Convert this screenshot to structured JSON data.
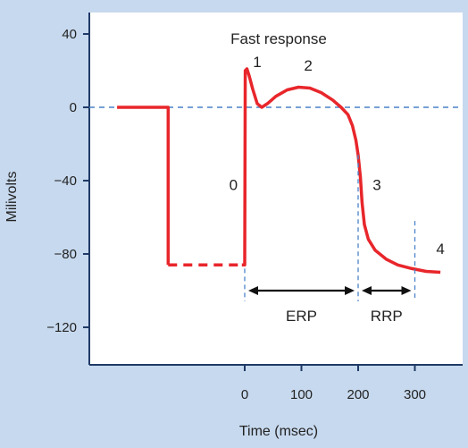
{
  "chart_data": {
    "type": "line",
    "title": "Fast response",
    "xlabel": "Time (msec)",
    "ylabel": "Milivolts",
    "xlim": [
      -220,
      350
    ],
    "ylim": [
      -140,
      50
    ],
    "x_ticks": [
      0,
      100,
      200,
      300
    ],
    "x_tick_labels": [
      "0",
      "100",
      "200",
      "300"
    ],
    "y_ticks": [
      40,
      0,
      -40,
      -80,
      -120
    ],
    "y_tick_labels": [
      "40",
      "0",
      "−40",
      "−80",
      "−120"
    ],
    "grid": false,
    "reference_line_y": 0,
    "series": [
      {
        "style": "solid",
        "color": "#e8262b",
        "points": [
          [
            -225,
            0
          ],
          [
            -135,
            0
          ],
          [
            -135,
            -86
          ]
        ]
      },
      {
        "style": "dashed",
        "color": "#e8262b",
        "points": [
          [
            -135,
            -86
          ],
          [
            -5,
            -86
          ]
        ]
      },
      {
        "style": "solid",
        "color": "#e8262b",
        "points": [
          [
            -5,
            -86
          ],
          [
            0,
            -86
          ],
          [
            1,
            20
          ],
          [
            4,
            21
          ],
          [
            8,
            17
          ],
          [
            14,
            10
          ],
          [
            22,
            2
          ],
          [
            30,
            0
          ],
          [
            40,
            2
          ],
          [
            55,
            6
          ],
          [
            75,
            9.5
          ],
          [
            95,
            11
          ],
          [
            115,
            10.5
          ],
          [
            135,
            8
          ],
          [
            155,
            4
          ],
          [
            170,
            0
          ],
          [
            182,
            -4
          ],
          [
            190,
            -10
          ],
          [
            196,
            -18
          ],
          [
            200,
            -26
          ],
          [
            204,
            -38
          ],
          [
            207,
            -52
          ],
          [
            211,
            -64
          ],
          [
            218,
            -72
          ],
          [
            230,
            -78
          ],
          [
            250,
            -83
          ],
          [
            270,
            -86
          ],
          [
            295,
            -88
          ],
          [
            320,
            -89.5
          ],
          [
            345,
            -90
          ]
        ]
      }
    ],
    "annotations": [
      {
        "text": "1",
        "x": 22,
        "y": 22
      },
      {
        "text": "2",
        "x": 112,
        "y": 20
      },
      {
        "text": "0",
        "x": -20,
        "y": -45
      },
      {
        "text": "3",
        "x": 233,
        "y": -45
      },
      {
        "text": "4",
        "x": 345,
        "y": -80
      }
    ],
    "refractory_periods": [
      {
        "label": "ERP",
        "from": 0,
        "to": 200
      },
      {
        "label": "RRP",
        "from": 200,
        "to": 300
      }
    ],
    "colors": {
      "line": "#e8262b",
      "reference": "#4a82c8",
      "axis": "#1f3a66",
      "plot_bg": "#ffffff",
      "page_bg": "#c7d9ee"
    }
  }
}
